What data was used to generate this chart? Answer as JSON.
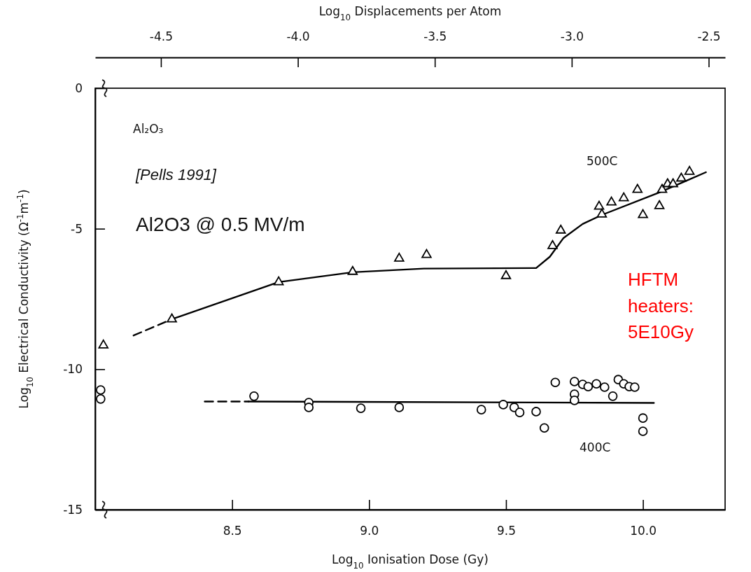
{
  "chart_data": {
    "type": "scatter",
    "xlabel": "Log$_{10}$ Ionisation Dose (Gy)",
    "ylabel": "Log$_{10}$ Electrical Conductivity (Ω$^{-1}$m$^{-1}$)",
    "x2label": "Log$_{10}$ Displacements per Atom",
    "xlim": [
      8.0,
      10.3
    ],
    "ylim": [
      -15,
      0
    ],
    "x2lim": [
      -4.74,
      -2.44
    ],
    "xticks": [
      8.5,
      {
        "value": 9.0,
        "label": "9.0"
      },
      9.5,
      {
        "value": 10.0,
        "label": "10.0"
      }
    ],
    "x2ticks": [
      -4.5,
      {
        "value": -4.0,
        "label": "-4.0"
      },
      -3.5,
      {
        "value": -3.0,
        "label": "-3.0"
      },
      -2.5
    ],
    "yticks": [
      0,
      -5,
      -10,
      -15
    ],
    "grid": false,
    "series": [
      {
        "marker": "triangle",
        "color": "#000000",
        "x": [
          8.03,
          8.28,
          8.67,
          8.94,
          9.11,
          9.21,
          9.5,
          9.67,
          9.7,
          9.84,
          9.85,
          9.885,
          9.93,
          9.98,
          10.0,
          10.06,
          10.07,
          10.09,
          10.11,
          10.14,
          10.17
        ],
        "values": [
          -9.15,
          -8.22,
          -6.9,
          -6.53,
          -6.06,
          -5.93,
          -6.68,
          -5.61,
          -5.06,
          -4.21,
          -4.49,
          -4.06,
          -3.91,
          -3.61,
          -4.51,
          -4.19,
          -3.61,
          -3.41,
          -3.41,
          -3.21,
          -2.97
        ]
      },
      {
        "type": "line",
        "line_style": "dashed",
        "color": "#000000",
        "x": [
          8.14,
          8.28
        ],
        "values": [
          -8.8,
          -8.22
        ]
      },
      {
        "type": "line",
        "line_style": "solid",
        "color": "#000000",
        "x": [
          8.28,
          8.67,
          8.94,
          9.2,
          9.61,
          9.66,
          9.71,
          9.78,
          9.85,
          10.06,
          10.23
        ],
        "values": [
          -8.22,
          -6.9,
          -6.55,
          -6.42,
          -6.4,
          -6.0,
          -5.33,
          -4.83,
          -4.51,
          -3.71,
          -2.99
        ]
      },
      {
        "marker": "circle",
        "color": "#000000",
        "x": [
          8.02,
          8.02,
          8.58,
          8.78,
          8.78,
          8.97,
          9.11,
          9.41,
          9.49,
          9.53,
          9.55,
          9.61,
          9.64,
          9.68,
          9.75,
          9.75,
          9.75,
          9.78,
          9.8,
          9.83,
          9.86,
          9.89,
          9.91,
          9.93,
          9.95,
          9.97,
          10.0,
          10.0
        ],
        "values": [
          -10.74,
          -11.06,
          -10.96,
          -11.19,
          -11.36,
          -11.39,
          -11.36,
          -11.44,
          -11.26,
          -11.36,
          -11.54,
          -11.51,
          -12.09,
          -10.47,
          -10.44,
          -10.89,
          -11.11,
          -10.54,
          -10.62,
          -10.52,
          -10.64,
          -10.96,
          -10.37,
          -10.52,
          -10.62,
          -10.64,
          -11.74,
          -12.21
        ]
      },
      {
        "type": "line",
        "line_style": "dashed",
        "color": "#000000",
        "x": [
          8.4,
          8.56
        ],
        "values": [
          -11.15,
          -11.15
        ]
      },
      {
        "type": "line",
        "line_style": "solid",
        "color": "#000000",
        "x": [
          8.56,
          10.04
        ],
        "values": [
          -11.15,
          -11.2
        ]
      }
    ],
    "annotations": [
      "Al₂O₃",
      "[Pells 1991]",
      "Al2O3 @ 0.5 MV/m",
      "HFTM heaters: 5E10Gy",
      "500C",
      "400C"
    ]
  }
}
